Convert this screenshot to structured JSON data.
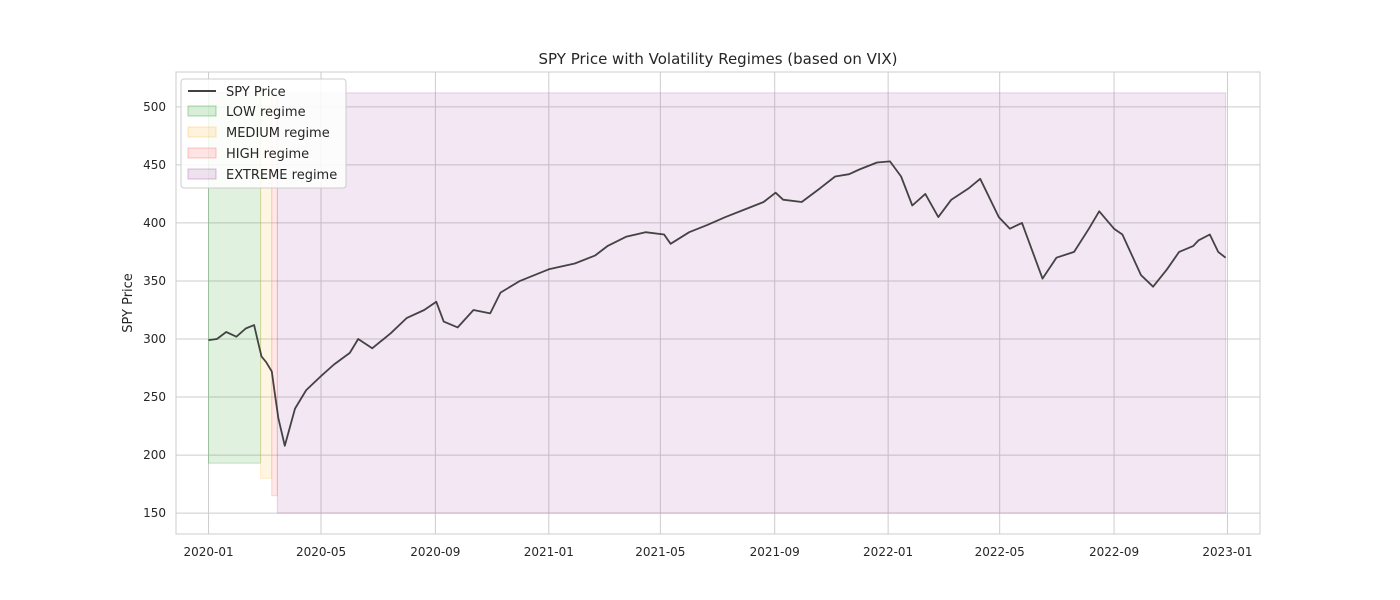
{
  "chart_data": {
    "type": "line",
    "title": "SPY Price with Volatility Regimes (based on VIX)",
    "xlabel": "",
    "ylabel": "SPY Price",
    "xlim": [
      "2019-11-27",
      "2023-02-05"
    ],
    "ylim": [
      132,
      530
    ],
    "x_ticks": [
      "2020-01",
      "2020-05",
      "2020-09",
      "2021-01",
      "2021-05",
      "2021-09",
      "2022-01",
      "2022-05",
      "2022-09",
      "2023-01"
    ],
    "y_ticks": [
      150,
      200,
      250,
      300,
      350,
      400,
      450,
      500
    ],
    "grid": true,
    "legend_position": "top-left",
    "series": [
      {
        "name": "SPY Price",
        "color": "#262626",
        "x": [
          "2020-01-01",
          "2020-01-10",
          "2020-01-20",
          "2020-01-31",
          "2020-02-10",
          "2020-02-19",
          "2020-02-24",
          "2020-02-27",
          "2020-03-03",
          "2020-03-09",
          "2020-03-12",
          "2020-03-16",
          "2020-03-23",
          "2020-04-03",
          "2020-04-15",
          "2020-05-01",
          "2020-05-15",
          "2020-06-01",
          "2020-06-10",
          "2020-06-25",
          "2020-07-15",
          "2020-08-01",
          "2020-08-20",
          "2020-09-02",
          "2020-09-10",
          "2020-09-25",
          "2020-10-12",
          "2020-10-30",
          "2020-11-10",
          "2020-12-01",
          "2021-01-01",
          "2021-01-29",
          "2021-02-20",
          "2021-03-05",
          "2021-03-25",
          "2021-04-15",
          "2021-05-05",
          "2021-05-12",
          "2021-06-01",
          "2021-06-20",
          "2021-07-10",
          "2021-08-01",
          "2021-08-20",
          "2021-09-02",
          "2021-09-10",
          "2021-09-30",
          "2021-10-20",
          "2021-11-05",
          "2021-11-20",
          "2021-12-01",
          "2021-12-20",
          "2022-01-03",
          "2022-01-15",
          "2022-01-27",
          "2022-02-10",
          "2022-02-24",
          "2022-03-10",
          "2022-03-29",
          "2022-04-10",
          "2022-04-30",
          "2022-05-12",
          "2022-05-25",
          "2022-06-16",
          "2022-07-01",
          "2022-07-20",
          "2022-08-05",
          "2022-08-16",
          "2022-09-01",
          "2022-09-10",
          "2022-09-30",
          "2022-10-13",
          "2022-10-28",
          "2022-11-10",
          "2022-11-25",
          "2022-12-01",
          "2022-12-13",
          "2022-12-22",
          "2022-12-30"
        ],
        "values": [
          299,
          300,
          306,
          302,
          309,
          312,
          295,
          285,
          280,
          272,
          255,
          232,
          208,
          240,
          256,
          268,
          278,
          288,
          300,
          292,
          305,
          318,
          325,
          332,
          315,
          310,
          325,
          322,
          340,
          350,
          360,
          365,
          372,
          380,
          388,
          392,
          390,
          382,
          392,
          398,
          405,
          412,
          418,
          426,
          420,
          418,
          430,
          440,
          442,
          446,
          452,
          453,
          440,
          415,
          425,
          405,
          420,
          430,
          438,
          405,
          395,
          400,
          352,
          370,
          375,
          395,
          410,
          395,
          390,
          355,
          345,
          360,
          375,
          380,
          385,
          390,
          375,
          370
        ]
      }
    ],
    "regimes": [
      {
        "name": "LOW regime",
        "color": "#2ca02c",
        "start": "2020-01-01",
        "end": "2020-02-26",
        "y_bottom": 193,
        "y_top": 512
      },
      {
        "name": "MEDIUM regime",
        "color": "#ffbf40",
        "start": "2020-02-26",
        "end": "2020-03-09",
        "y_bottom": 180,
        "y_top": 512
      },
      {
        "name": "HIGH regime",
        "color": "#ff6b6b",
        "start": "2020-03-09",
        "end": "2020-03-15",
        "y_bottom": 165,
        "y_top": 512
      },
      {
        "name": "EXTREME regime",
        "color": "#a65ea6",
        "start": "2020-03-15",
        "end": "2022-12-30",
        "y_bottom": 150,
        "y_top": 512
      }
    ]
  }
}
